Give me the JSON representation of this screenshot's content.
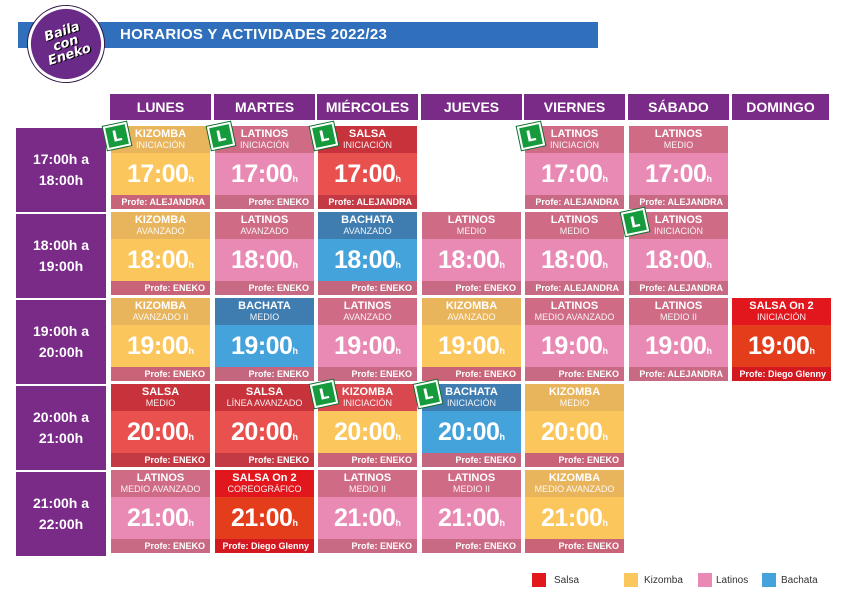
{
  "header": {
    "logo_text": "Baila\ncon\nEneko",
    "title": "HORARIOS Y ACTIVIDADES 2022/23"
  },
  "days": [
    "LUNES",
    "MARTES",
    "MIÉRCOLES",
    "JUEVES",
    "VIERNES",
    "SÁBADO",
    "DOMINGO"
  ],
  "time_slots": [
    "17:00h a\n18:00h",
    "18:00h a\n19:00h",
    "19:00h a\n20:00h",
    "20:00h a\n21:00h",
    "21:00h a\n22:00h"
  ],
  "badge_letter": "L",
  "classes": {
    "r0c0": {
      "name": "KIZOMBA",
      "level": "INICIACIÓN",
      "time": "17:00",
      "unit": "h",
      "profe": "Profe: ALEJANDRA"
    },
    "r0c1": {
      "name": "LATINOS",
      "level": "INICIACIÓN",
      "time": "17:00",
      "unit": "h",
      "profe": "Profe: ENEKO"
    },
    "r0c2": {
      "name": "SALSA",
      "level": "INICIACIÓN",
      "time": "17:00",
      "unit": "h",
      "profe": "Profe: ALEJANDRA"
    },
    "r0c4": {
      "name": "LATINOS",
      "level": "INICIACIÓN",
      "time": "17:00",
      "unit": "h",
      "profe": "Profe: ALEJANDRA"
    },
    "r0c5": {
      "name": "LATINOS",
      "level": "MEDIO",
      "time": "17:00",
      "unit": "h",
      "profe": "Profe: ALEJANDRA"
    },
    "r1c0": {
      "name": "KIZOMBA",
      "level": "AVANZADO",
      "time": "18:00",
      "unit": "h",
      "profe": "Profe: ENEKO"
    },
    "r1c1": {
      "name": "LATINOS",
      "level": "AVANZADO",
      "time": "18:00",
      "unit": "h",
      "profe": "Profe: ENEKO"
    },
    "r1c2": {
      "name": "BACHATA",
      "level": "AVANZADO",
      "time": "18:00",
      "unit": "h",
      "profe": "Profe: ENEKO"
    },
    "r1c3": {
      "name": "LATINOS",
      "level": "MEDIO",
      "time": "18:00",
      "unit": "h",
      "profe": "Profe: ENEKO"
    },
    "r1c4": {
      "name": "LATINOS",
      "level": "MEDIO",
      "time": "18:00",
      "unit": "h",
      "profe": "Profe: ALEJANDRA"
    },
    "r1c5": {
      "name": "LATINOS",
      "level": "INICIACIÓN",
      "time": "18:00",
      "unit": "h",
      "profe": "Profe: ALEJANDRA"
    },
    "r2c0": {
      "name": "KIZOMBA",
      "level": "AVANZADO II",
      "time": "19:00",
      "unit": "h",
      "profe": "Profe: ENEKO"
    },
    "r2c1": {
      "name": "BACHATA",
      "level": "MEDIO",
      "time": "19:00",
      "unit": "h",
      "profe": "Profe: ENEKO"
    },
    "r2c2": {
      "name": "LATINOS",
      "level": "AVANZADO",
      "time": "19:00",
      "unit": "h",
      "profe": "Profe: ENEKO"
    },
    "r2c3": {
      "name": "KIZOMBA",
      "level": "AVANZADO",
      "time": "19:00",
      "unit": "h",
      "profe": "Profe: ENEKO"
    },
    "r2c4": {
      "name": "LATINOS",
      "level": "MEDIO AVANZADO",
      "time": "19:00",
      "unit": "h",
      "profe": "Profe: ENEKO"
    },
    "r2c5": {
      "name": "LATINOS",
      "level": "MEDIO II",
      "time": "19:00",
      "unit": "h",
      "profe": "Profe: ALEJANDRA"
    },
    "r2c6": {
      "name": "SALSA On 2",
      "level": "INICIACIÓN",
      "time": "19:00",
      "unit": "h",
      "profe": "Profe: Diego Glenny"
    },
    "r3c0": {
      "name": "SALSA",
      "level": "MEDIO",
      "time": "20:00",
      "unit": "h",
      "profe": "Profe: ENEKO"
    },
    "r3c1": {
      "name": "SALSA",
      "level": "LÍNEA AVANZADO",
      "time": "20:00",
      "unit": "h",
      "profe": "Profe: ENEKO"
    },
    "r3c2": {
      "name": "KIZOMBA",
      "level": "INICIACIÓN",
      "time": "20:00",
      "unit": "h",
      "profe": "Profe: ENEKO"
    },
    "r3c3": {
      "name": "BACHATA",
      "level": "INICIACIÓN",
      "time": "20:00",
      "unit": "h",
      "profe": "Profe: ENEKO"
    },
    "r3c4": {
      "name": "KIZOMBA",
      "level": "MEDIO",
      "time": "20:00",
      "unit": "h",
      "profe": "Profe: ENEKO"
    },
    "r4c0": {
      "name": "LATINOS",
      "level": "MEDIO AVANZADO",
      "time": "21:00",
      "unit": "h",
      "profe": "Profe: ENEKO"
    },
    "r4c1": {
      "name": "SALSA On 2",
      "level": "COREOGRÁFICO",
      "time": "21:00",
      "unit": "h",
      "profe": "Profe: Diego Glenny"
    },
    "r4c2": {
      "name": "LATINOS",
      "level": "MEDIO II",
      "time": "21:00",
      "unit": "h",
      "profe": "Profe: ENEKO"
    },
    "r4c3": {
      "name": "LATINOS",
      "level": "MEDIO II",
      "time": "21:00",
      "unit": "h",
      "profe": "Profe: ENEKO"
    },
    "r4c4": {
      "name": "KIZOMBA",
      "level": "MEDIO AVANZADO",
      "time": "21:00",
      "unit": "h",
      "profe": "Profe: ENEKO"
    }
  },
  "legend": [
    {
      "label": "Salsa",
      "color": "#e2161d"
    },
    {
      "label": "Kizomba",
      "color": "#fbc65b"
    },
    {
      "label": "Latinos",
      "color": "#e98ab5"
    },
    {
      "label": "Bachata",
      "color": "#45a3dc"
    }
  ]
}
